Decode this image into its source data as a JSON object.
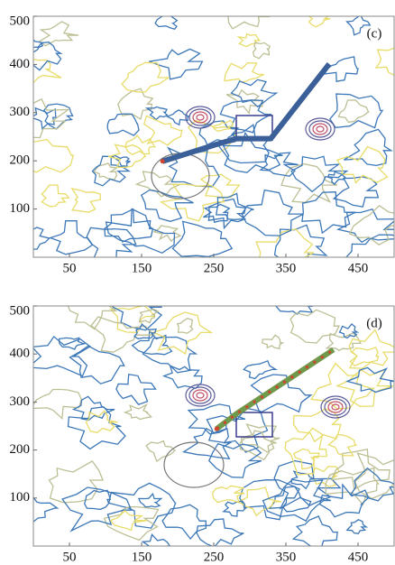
{
  "chart_data": [
    {
      "type": "line",
      "annotation": "(c)",
      "x": [
        179,
        251,
        281,
        329,
        410
      ],
      "series": [
        {
          "color": "#3b5f98",
          "values": [
            199,
            233,
            246,
            246,
            401
          ]
        }
      ],
      "xlim": [
        0,
        500
      ],
      "ylim": [
        0,
        500
      ],
      "xticks": [
        50,
        150,
        250,
        350,
        450
      ],
      "yticks": [
        100,
        200,
        300,
        400,
        500
      ]
    },
    {
      "type": "line",
      "annotation": "(d)",
      "x": [
        254,
        282,
        416
      ],
      "series": [
        {
          "color": "#6f9a4c",
          "dash_color": "#d0452f",
          "values": [
            244,
            276,
            409
          ]
        }
      ],
      "xlim": [
        0,
        500
      ],
      "ylim": [
        0,
        500
      ],
      "xticks": [
        50,
        150,
        250,
        350,
        450
      ],
      "yticks": [
        100,
        200,
        300,
        400,
        500
      ]
    }
  ]
}
